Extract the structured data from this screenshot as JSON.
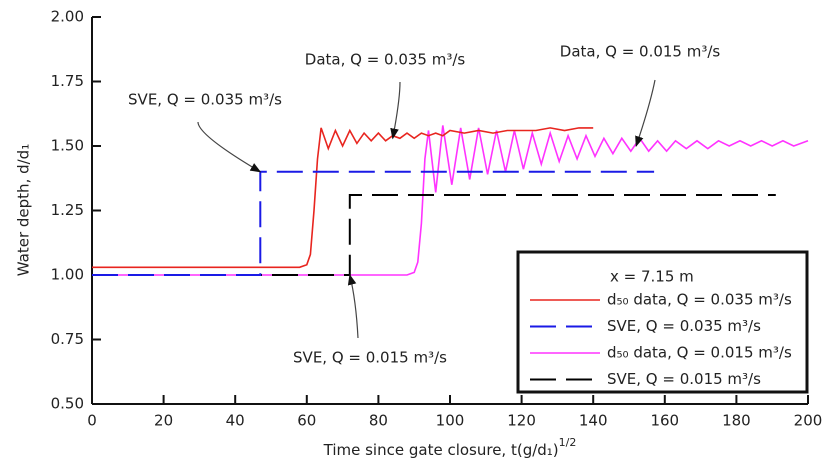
{
  "chart_data": {
    "type": "line",
    "x_label": "Time since gate closure, t(g/d₁)",
    "x_label_superscript": "1/2",
    "y_label": "Water depth, d/d₁",
    "xlim": [
      0,
      200
    ],
    "xticks": [
      0,
      20,
      40,
      60,
      80,
      100,
      120,
      140,
      160,
      180,
      200
    ],
    "ylim": [
      0.5,
      2.0
    ],
    "yticks": [
      {
        "value": 0.5,
        "label": "0.50"
      },
      0.75,
      {
        "value": 1.0,
        "label": "1.00"
      },
      1.25,
      {
        "value": 1.5,
        "label": "1.50"
      },
      1.75,
      {
        "value": 2.0,
        "label": "2.00"
      }
    ],
    "grid": false,
    "legend": {
      "title": "x = 7.15 m",
      "position": "lower right"
    },
    "series": [
      {
        "name": "d₅₀ data, Q = 0.035 m³/s",
        "color": "#e8251f",
        "dashed": false,
        "x": [
          0,
          20,
          40,
          58,
          60,
          61,
          62,
          63,
          64,
          66,
          68,
          70,
          72,
          74,
          76,
          78,
          80,
          82,
          84,
          86,
          88,
          90,
          92,
          94,
          96,
          98,
          100,
          104,
          108,
          112,
          116,
          120,
          124,
          128,
          132,
          136,
          140
        ],
        "values": [
          1.03,
          1.03,
          1.03,
          1.03,
          1.04,
          1.08,
          1.25,
          1.45,
          1.57,
          1.49,
          1.56,
          1.5,
          1.56,
          1.51,
          1.55,
          1.52,
          1.55,
          1.52,
          1.54,
          1.53,
          1.55,
          1.53,
          1.55,
          1.54,
          1.55,
          1.54,
          1.56,
          1.55,
          1.56,
          1.55,
          1.56,
          1.56,
          1.56,
          1.57,
          1.56,
          1.57,
          1.57
        ]
      },
      {
        "name": "SVE, Q = 0.035 m³/s",
        "color": "#1a1ae6",
        "dashed": true,
        "x": [
          0,
          47,
          47,
          157
        ],
        "values": [
          1.0,
          1.0,
          1.4,
          1.4
        ]
      },
      {
        "name": "d₅₀ data, Q = 0.015 m³/s",
        "color": "#ff33ff",
        "dashed": false,
        "x": [
          0,
          40,
          80,
          88,
          90,
          91,
          92,
          93,
          94,
          96,
          98,
          100.5,
          103,
          105.5,
          108,
          110.5,
          113,
          115.5,
          118,
          120.5,
          123,
          125.5,
          128,
          130.5,
          133,
          135.5,
          138,
          140.5,
          143,
          145.5,
          148,
          150.5,
          153,
          155.5,
          158,
          160.5,
          163,
          166,
          169,
          172,
          175,
          178,
          181,
          184,
          187,
          190,
          193,
          196,
          200
        ],
        "values": [
          1.0,
          1.0,
          1.0,
          1.0,
          1.01,
          1.05,
          1.2,
          1.45,
          1.56,
          1.32,
          1.58,
          1.35,
          1.57,
          1.37,
          1.57,
          1.39,
          1.56,
          1.4,
          1.56,
          1.41,
          1.55,
          1.43,
          1.55,
          1.44,
          1.54,
          1.45,
          1.54,
          1.46,
          1.53,
          1.47,
          1.53,
          1.48,
          1.53,
          1.48,
          1.52,
          1.48,
          1.52,
          1.49,
          1.52,
          1.49,
          1.52,
          1.5,
          1.52,
          1.5,
          1.52,
          1.5,
          1.52,
          1.5,
          1.52
        ]
      },
      {
        "name": "SVE, Q = 0.015 m³/s",
        "color": "#000000",
        "dashed": true,
        "x": [
          0,
          72,
          72,
          191
        ],
        "values": [
          1.0,
          1.0,
          1.31,
          1.31
        ]
      }
    ],
    "annotations": [
      {
        "text": "Data, Q = 0.035 m³/s",
        "xy": [
          84,
          1.53
        ]
      },
      {
        "text": "Data, Q = 0.015 m³/s",
        "xy": [
          152,
          1.5
        ]
      },
      {
        "text": "SVE, Q = 0.035 m³/s",
        "xy": [
          47,
          1.4
        ]
      },
      {
        "text": "SVE, Q = 0.015 m³/s",
        "xy": [
          72,
          1.0
        ]
      }
    ]
  }
}
